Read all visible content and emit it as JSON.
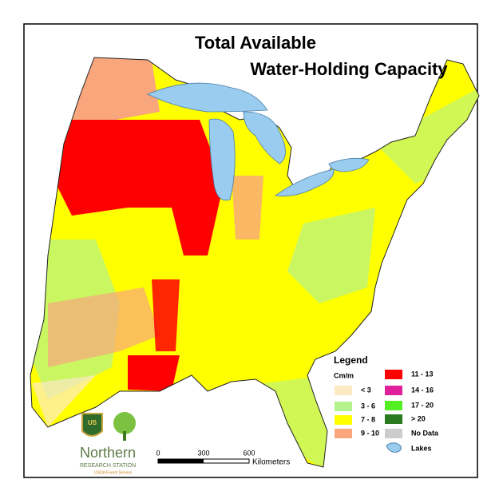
{
  "title_line1": "Total Available",
  "title_line2": "Water-Holding Capacity",
  "legend": {
    "title": "Legend",
    "unit": "Cm/m",
    "items": [
      {
        "label": "< 3",
        "color": "#fde9c4"
      },
      {
        "label": "3 - 6",
        "color": "#b3f28c"
      },
      {
        "label": "7 - 8",
        "color": "#ffff00"
      },
      {
        "label": "9 - 10",
        "color": "#f9a67d"
      },
      {
        "label": "11 - 13",
        "color": "#ff0000"
      },
      {
        "label": "14 - 16",
        "color": "#e0209a"
      },
      {
        "label": "17 - 20",
        "color": "#55ee22"
      },
      {
        "label": "> 20",
        "color": "#2a7a1e"
      },
      {
        "label": "No Data",
        "color": "#cccccc"
      }
    ],
    "lakes": {
      "label": "Lakes",
      "color": "#99ccee"
    }
  },
  "scale_bar": {
    "ticks": [
      0,
      300,
      600
    ],
    "unit": "Kilometers"
  },
  "logo": {
    "name": "Northern",
    "station": "RESEARCH STATION",
    "agency": "USDA Forest Service"
  }
}
